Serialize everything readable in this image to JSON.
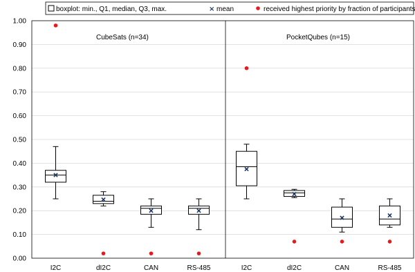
{
  "chart_data": {
    "type": "boxplot",
    "legend": {
      "placement": "top",
      "entries": [
        {
          "key": "box",
          "label": "boxplot: min., Q1, median, Q3, max."
        },
        {
          "key": "mean",
          "label": "mean",
          "color": "#1f3864"
        },
        {
          "key": "priority",
          "label": "received highest priority by fraction of participants",
          "color": "#e41a1c"
        }
      ]
    },
    "ylim": [
      0,
      1
    ],
    "yticks": [
      "0.00",
      "0.10",
      "0.20",
      "0.30",
      "0.40",
      "0.50",
      "0.60",
      "0.70",
      "0.80",
      "0.90",
      "1.00"
    ],
    "grid": true,
    "panels": [
      {
        "title": "CubeSats (n=34)",
        "categories": [
          {
            "label": "I2C",
            "min": 0.25,
            "q1": 0.32,
            "median": 0.35,
            "q3": 0.37,
            "max": 0.47,
            "mean": 0.35,
            "priority": 0.98
          },
          {
            "label": "dI2C",
            "min": 0.22,
            "q1": 0.23,
            "median": 0.24,
            "q3": 0.265,
            "max": 0.28,
            "mean": 0.247,
            "priority": 0.02
          },
          {
            "label": "CAN",
            "min": 0.13,
            "q1": 0.185,
            "median": 0.21,
            "q3": 0.22,
            "max": 0.25,
            "mean": 0.2,
            "priority": 0.02
          },
          {
            "label": "RS-485",
            "min": 0.12,
            "q1": 0.185,
            "median": 0.21,
            "q3": 0.22,
            "max": 0.25,
            "mean": 0.2,
            "priority": 0.02
          }
        ]
      },
      {
        "title": "PocketQubes (n=15)",
        "categories": [
          {
            "label": "I2C",
            "min": 0.25,
            "q1": 0.305,
            "median": 0.385,
            "q3": 0.45,
            "max": 0.48,
            "mean": 0.375,
            "priority": 0.8
          },
          {
            "label": "dI2C",
            "min": 0.255,
            "q1": 0.26,
            "median": 0.275,
            "q3": 0.285,
            "max": 0.29,
            "mean": 0.27,
            "priority": 0.07
          },
          {
            "label": "CAN",
            "min": 0.11,
            "q1": 0.13,
            "median": 0.165,
            "q3": 0.215,
            "max": 0.25,
            "mean": 0.17,
            "priority": 0.07
          },
          {
            "label": "RS-485",
            "min": 0.13,
            "q1": 0.14,
            "median": 0.165,
            "q3": 0.22,
            "max": 0.25,
            "mean": 0.18,
            "priority": 0.07
          }
        ]
      }
    ],
    "colors": {
      "box": "#000000",
      "mean": "#1f3864",
      "priority": "#e41a1c",
      "grid": "#d9d9d9"
    }
  }
}
